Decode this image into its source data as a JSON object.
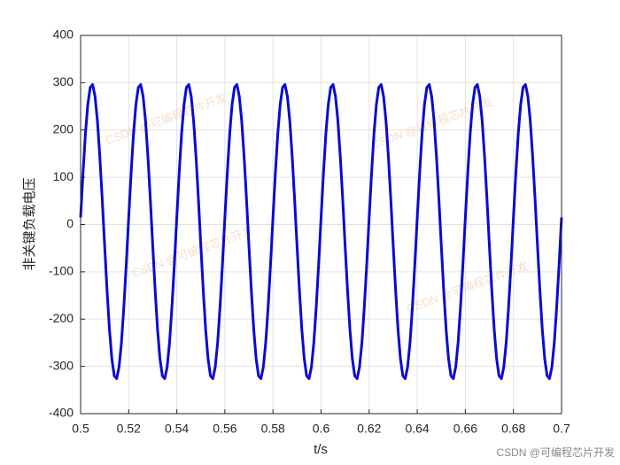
{
  "chart_data": {
    "type": "line",
    "x_label": "t/s",
    "y_label": "非关键负载电压",
    "watermark": "CSDN @可编程芯片开发",
    "color": "#0a0ad0",
    "grid": true,
    "xlim": [
      0.5,
      0.7
    ],
    "ylim": [
      -400,
      400
    ],
    "xticks": [
      0.5,
      0.52,
      0.54,
      0.56,
      0.58,
      0.6,
      0.62,
      0.64,
      0.66,
      0.68,
      0.7
    ],
    "yticks": [
      -400,
      -300,
      -200,
      -100,
      0,
      100,
      200,
      300,
      400
    ],
    "x": [
      0.5,
      0.501,
      0.502,
      0.503,
      0.504,
      0.505,
      0.506,
      0.507,
      0.508,
      0.509,
      0.51,
      0.511,
      0.512,
      0.513,
      0.514,
      0.515,
      0.516,
      0.517,
      0.518,
      0.519,
      0.52,
      0.521,
      0.522,
      0.523,
      0.524,
      0.525,
      0.526,
      0.527,
      0.528,
      0.529,
      0.53,
      0.531,
      0.532,
      0.533,
      0.534,
      0.535,
      0.536,
      0.537,
      0.538,
      0.539,
      0.54,
      0.541,
      0.542,
      0.543,
      0.544,
      0.545,
      0.546,
      0.547,
      0.548,
      0.549,
      0.55,
      0.551,
      0.552,
      0.553,
      0.554,
      0.555,
      0.556,
      0.557,
      0.558,
      0.559,
      0.56,
      0.561,
      0.562,
      0.563,
      0.564,
      0.565,
      0.566,
      0.567,
      0.568,
      0.569,
      0.57,
      0.571,
      0.572,
      0.573,
      0.574,
      0.575,
      0.576,
      0.577,
      0.578,
      0.579,
      0.58,
      0.581,
      0.582,
      0.583,
      0.584,
      0.585,
      0.586,
      0.587,
      0.588,
      0.589,
      0.59,
      0.591,
      0.592,
      0.593,
      0.594,
      0.595,
      0.596,
      0.597,
      0.598,
      0.599,
      0.6,
      0.601,
      0.602,
      0.603,
      0.604,
      0.605,
      0.606,
      0.607,
      0.608,
      0.609,
      0.61,
      0.611,
      0.612,
      0.613,
      0.614,
      0.615,
      0.616,
      0.617,
      0.618,
      0.619,
      0.62,
      0.621,
      0.622,
      0.623,
      0.624,
      0.625,
      0.626,
      0.627,
      0.628,
      0.629,
      0.63,
      0.631,
      0.632,
      0.633,
      0.634,
      0.635,
      0.636,
      0.637,
      0.638,
      0.639,
      0.64,
      0.641,
      0.642,
      0.643,
      0.644,
      0.645,
      0.646,
      0.647,
      0.648,
      0.649,
      0.65,
      0.651,
      0.652,
      0.653,
      0.654,
      0.655,
      0.656,
      0.657,
      0.658,
      0.659,
      0.66,
      0.661,
      0.662,
      0.663,
      0.664,
      0.665,
      0.666,
      0.667,
      0.668,
      0.669,
      0.67,
      0.671,
      0.672,
      0.673,
      0.674,
      0.675,
      0.676,
      0.677,
      0.678,
      0.679,
      0.68,
      0.681,
      0.682,
      0.683,
      0.684,
      0.685,
      0.686,
      0.687,
      0.688,
      0.689,
      0.69,
      0.691,
      0.692,
      0.693,
      0.694,
      0.695,
      0.696,
      0.697,
      0.698,
      0.699,
      0.7
    ],
    "values": [
      15,
      109,
      192,
      254,
      290,
      296,
      271,
      219,
      143,
      53,
      -45,
      -139,
      -222,
      -284,
      -320,
      -326,
      -301,
      -249,
      -173,
      -83,
      15,
      109,
      192,
      254,
      290,
      296,
      271,
      219,
      143,
      53,
      -45,
      -139,
      -222,
      -284,
      -320,
      -326,
      -301,
      -249,
      -173,
      -83,
      15,
      109,
      192,
      254,
      290,
      296,
      271,
      219,
      143,
      53,
      -45,
      -139,
      -222,
      -284,
      -320,
      -326,
      -301,
      -249,
      -173,
      -83,
      15,
      109,
      192,
      254,
      290,
      296,
      271,
      219,
      143,
      53,
      -45,
      -139,
      -222,
      -284,
      -320,
      -326,
      -301,
      -249,
      -173,
      -83,
      15,
      109,
      192,
      254,
      290,
      296,
      271,
      219,
      143,
      53,
      -45,
      -139,
      -222,
      -284,
      -320,
      -326,
      -301,
      -249,
      -173,
      -83,
      15,
      109,
      192,
      254,
      290,
      296,
      271,
      219,
      143,
      53,
      -45,
      -139,
      -222,
      -284,
      -320,
      -326,
      -301,
      -249,
      -173,
      -83,
      15,
      109,
      192,
      254,
      290,
      296,
      271,
      219,
      143,
      53,
      -45,
      -139,
      -222,
      -284,
      -320,
      -326,
      -301,
      -249,
      -173,
      -83,
      15,
      109,
      192,
      254,
      290,
      296,
      271,
      219,
      143,
      53,
      -45,
      -139,
      -222,
      -284,
      -320,
      -326,
      -301,
      -249,
      -173,
      -83,
      15,
      109,
      192,
      254,
      290,
      296,
      271,
      219,
      143,
      53,
      -45,
      -139,
      -222,
      -284,
      -320,
      -326,
      -301,
      -249,
      -173,
      -83,
      15,
      109,
      192,
      254,
      290,
      296,
      271,
      219,
      143,
      53,
      -45,
      -139,
      -222,
      -284,
      -320,
      -326,
      -301,
      -249,
      -173,
      -83,
      15
    ]
  }
}
